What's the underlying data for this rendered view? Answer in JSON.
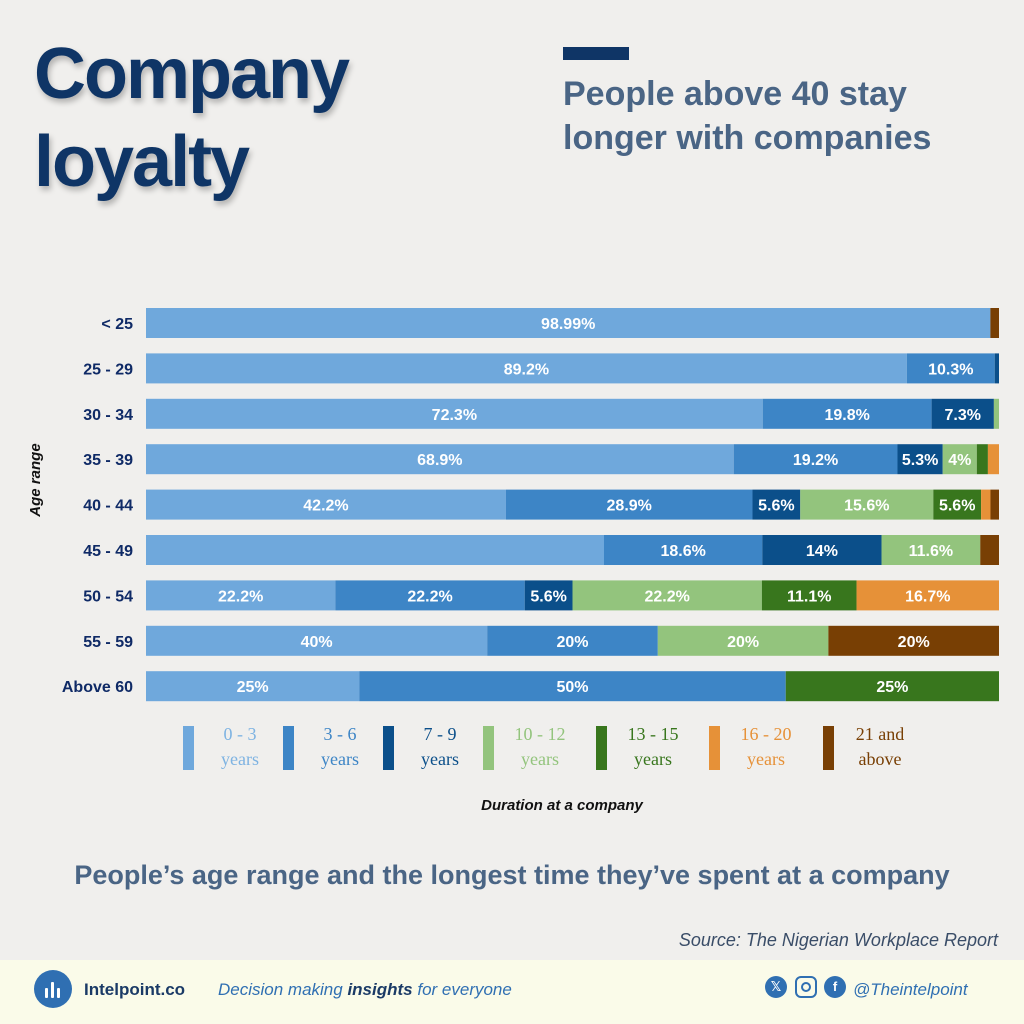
{
  "title_lines": [
    "Company",
    "loyalty"
  ],
  "subtitle_lines": [
    "People above 40 stay",
    "longer with companies"
  ],
  "caption": "People’s age range and the longest time they’ve spent at a company",
  "source": "Source: The Nigerian Workplace Report",
  "footer": {
    "brand": "Intelpoint.co",
    "tagline_pre": "Decision making ",
    "tagline_bold": "insights",
    "tagline_post": " for everyone",
    "handle": "@Theintelpoint",
    "icons": [
      "x-icon",
      "instagram-icon",
      "facebook-icon"
    ]
  },
  "chart_data": {
    "type": "bar",
    "orientation": "horizontal",
    "stacked": true,
    "ylabel": "Age range",
    "xlabel": "Duration at a company",
    "categories": [
      "< 25",
      "25 - 29",
      "30 - 34",
      "35 - 39",
      "40 - 44",
      "45 - 49",
      "50 - 54",
      "55 - 59",
      "Above 60"
    ],
    "legend_placement": "bottom",
    "series": [
      {
        "name": "0 - 3 years",
        "legend_lines": [
          "0 - 3",
          "years"
        ],
        "color": "#6fa8dc",
        "text_color": "#7eb3e2",
        "values": [
          98.99,
          89.2,
          72.3,
          68.9,
          42.2,
          53.8,
          22.2,
          40,
          25
        ],
        "labels": [
          "98.99%",
          "89.2%",
          "72.3%",
          "68.9%",
          "42.2%",
          "",
          "22.2%",
          "40%",
          "25%"
        ]
      },
      {
        "name": "3 - 6 years",
        "legend_lines": [
          "3 - 6",
          "years"
        ],
        "color": "#3d85c6",
        "text_color": "#3d85c6",
        "values": [
          0,
          10.3,
          19.8,
          19.2,
          28.9,
          18.6,
          22.2,
          20,
          50
        ],
        "labels": [
          "",
          "10.3%",
          "19.8%",
          "19.2%",
          "28.9%",
          "18.6%",
          "22.2%",
          "20%",
          "50%"
        ]
      },
      {
        "name": "7 - 9 years",
        "legend_lines": [
          "7 - 9",
          "years"
        ],
        "color": "#0b4f8a",
        "text_color": "#0b4f8a",
        "values": [
          0,
          0.5,
          7.3,
          5.3,
          5.6,
          14,
          5.6,
          0,
          0
        ],
        "labels": [
          "",
          "",
          "7.3%",
          "5.3%",
          "5.6%",
          "14%",
          "5.6%",
          "",
          ""
        ]
      },
      {
        "name": "10 - 12 years",
        "legend_lines": [
          "10 - 12",
          "years"
        ],
        "color": "#93c47d",
        "text_color": "#93c47d",
        "values": [
          0,
          0,
          0.6,
          4,
          15.6,
          11.6,
          22.2,
          20,
          0
        ],
        "labels": [
          "",
          "",
          "",
          "4%",
          "15.6%",
          "11.6%",
          "22.2%",
          "20%",
          ""
        ]
      },
      {
        "name": "13 - 15 years",
        "legend_lines": [
          "13 - 15",
          "years"
        ],
        "color": "#38761d",
        "text_color": "#38761d",
        "values": [
          0,
          0,
          0,
          1.3,
          5.6,
          0,
          11.1,
          0,
          25
        ],
        "labels": [
          "",
          "",
          "",
          "",
          "5.6%",
          "",
          "11.1%",
          "",
          "25%"
        ]
      },
      {
        "name": "16 - 20 years",
        "legend_lines": [
          "16 - 20",
          "years"
        ],
        "color": "#e69138",
        "text_color": "#e69138",
        "values": [
          0,
          0,
          0,
          1.3,
          1.1,
          0,
          16.7,
          0,
          0
        ],
        "labels": [
          "",
          "",
          "",
          "",
          "",
          "",
          "16.7%",
          "",
          ""
        ]
      },
      {
        "name": "21 and above",
        "legend_lines": [
          "21 and",
          "above"
        ],
        "color": "#783f04",
        "text_color": "#783f04",
        "values": [
          1.01,
          0,
          0,
          0,
          1.0,
          2.2,
          0,
          20,
          0
        ],
        "labels": [
          "",
          "",
          "",
          "",
          "",
          "",
          "",
          "20%",
          ""
        ]
      }
    ]
  }
}
